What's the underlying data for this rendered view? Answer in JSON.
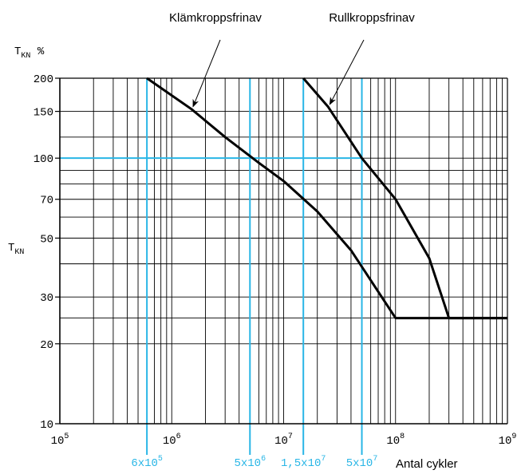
{
  "chart_data": {
    "type": "line",
    "x_scale": "log",
    "y_scale": "log",
    "xlim": [
      100000,
      1000000000
    ],
    "ylim": [
      10,
      200
    ],
    "ylabel_top": {
      "main": "T",
      "sub": "KN",
      "suffix": " %"
    },
    "ylabel_side": {
      "main": "T",
      "sub": "KN"
    },
    "xlabel": "Antal cykler",
    "y_ticks": [
      {
        "value": 10,
        "label": "10"
      },
      {
        "value": 20,
        "label": "20"
      },
      {
        "value": 30,
        "label": "30"
      },
      {
        "value": 50,
        "label": "50"
      },
      {
        "value": 70,
        "label": "70"
      },
      {
        "value": 100,
        "label": "100"
      },
      {
        "value": 150,
        "label": "150"
      },
      {
        "value": 200,
        "label": "200"
      }
    ],
    "x_ticks": [
      {
        "value": 100000,
        "base": "10",
        "exp": "5"
      },
      {
        "value": 1000000,
        "base": "10",
        "exp": "6"
      },
      {
        "value": 10000000,
        "base": "10",
        "exp": "7"
      },
      {
        "value": 100000000,
        "base": "10",
        "exp": "8"
      },
      {
        "value": 1000000000,
        "base": "10",
        "exp": "9"
      }
    ],
    "y_minor_grid": [
      25,
      40,
      60,
      80,
      90,
      120
    ],
    "x_grid_major": true,
    "series": [
      {
        "name": "Klämkroppsfrinav",
        "points": [
          [
            600000,
            200
          ],
          [
            1500000,
            153
          ],
          [
            3000000,
            120
          ],
          [
            6000000,
            96
          ],
          [
            10000000,
            82
          ],
          [
            20000000,
            63
          ],
          [
            40000000,
            45
          ],
          [
            100000000,
            25
          ],
          [
            1000000000,
            25
          ]
        ]
      },
      {
        "name": "Rullkroppsfrinav",
        "points": [
          [
            15000000,
            200
          ],
          [
            25000000,
            156
          ],
          [
            50000000,
            100
          ],
          [
            100000000,
            70
          ],
          [
            200000000,
            42
          ],
          [
            300000000,
            25
          ],
          [
            1000000000,
            25
          ]
        ]
      }
    ],
    "reference_lines": {
      "horizontal": [
        {
          "value": 100
        }
      ],
      "vertical": [
        {
          "value": 600000,
          "base": "6x10",
          "exp": "5"
        },
        {
          "value": 5000000,
          "base": "5x10",
          "exp": "6"
        },
        {
          "value": 15000000,
          "base": "1,5x10",
          "exp": "7"
        },
        {
          "value": 50000000,
          "base": "5x10",
          "exp": "7"
        }
      ]
    },
    "annotations": [
      {
        "text": "Klämkroppsfrinav",
        "x": 1500000,
        "y": 153
      },
      {
        "text": "Rullkroppsfrinav",
        "x": 25000000,
        "y": 156
      }
    ],
    "colors": {
      "curve": "#000000",
      "grid": "#000000",
      "reference": "#29b6e6"
    }
  }
}
